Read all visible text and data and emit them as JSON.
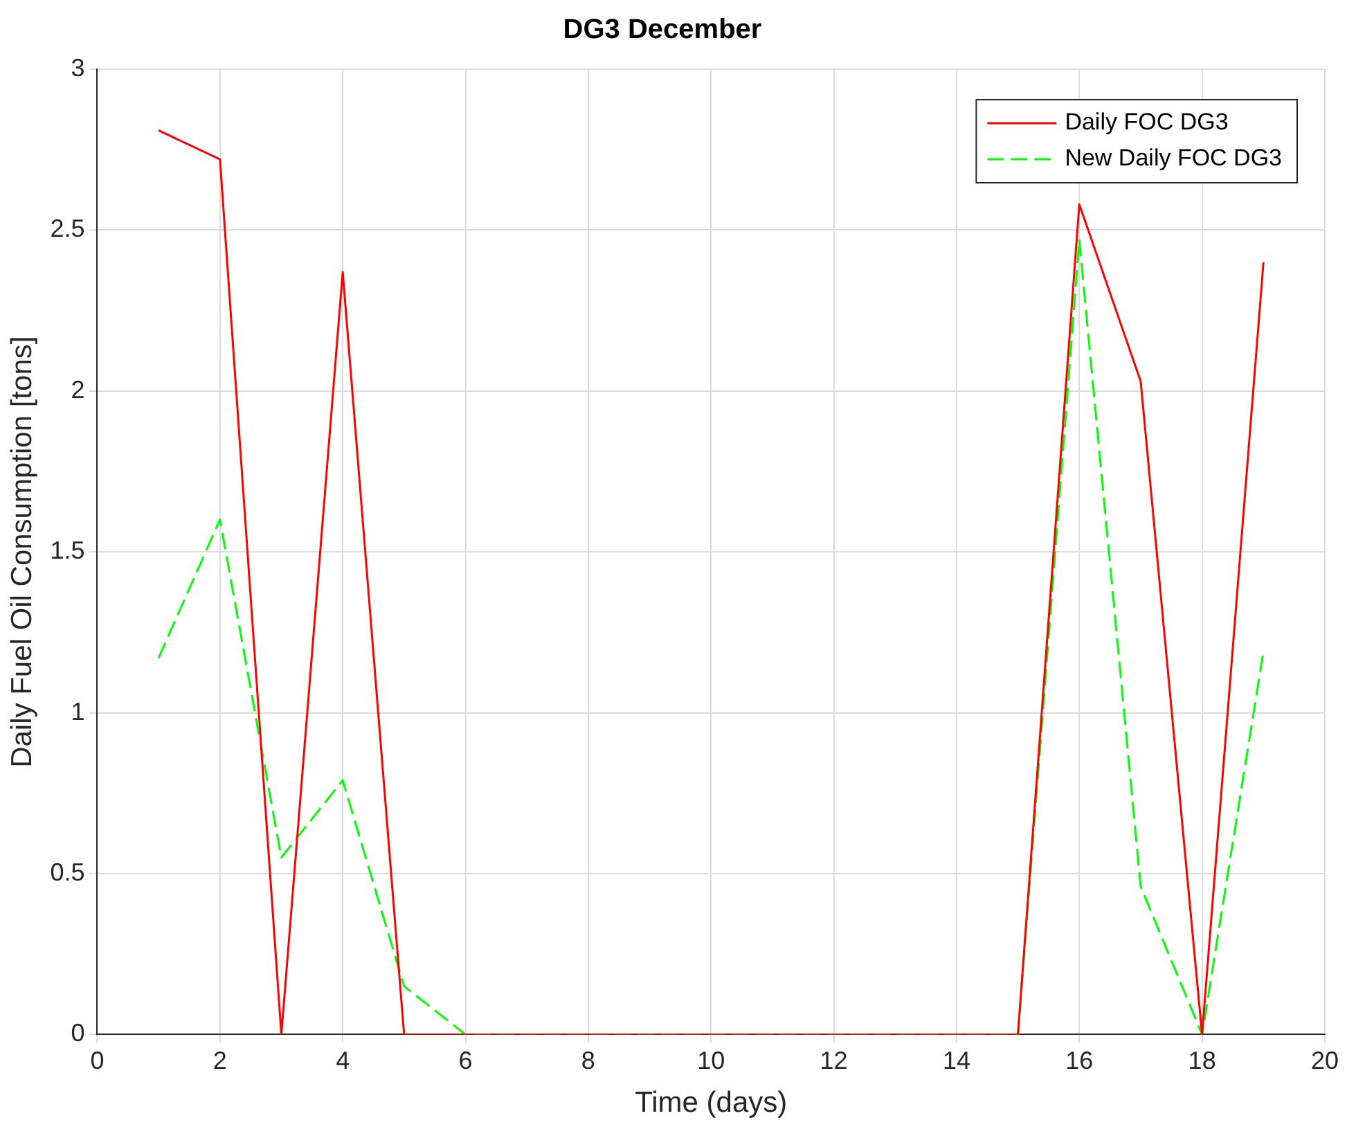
{
  "chart_data": {
    "type": "line",
    "title": "DG3 December",
    "xlabel": "Time (days)",
    "ylabel": "Daily Fuel Oil Consumption [tons]",
    "x": [
      1,
      2,
      3,
      4,
      5,
      6,
      7,
      8,
      9,
      10,
      11,
      12,
      13,
      14,
      15,
      16,
      17,
      18,
      19
    ],
    "series": [
      {
        "name": "Daily FOC DG3",
        "color": "#ff0000",
        "line_style": "solid",
        "values": [
          2.81,
          2.72,
          0,
          2.37,
          0,
          0,
          0,
          0,
          0,
          0,
          0,
          0,
          0,
          0,
          0,
          2.58,
          2.03,
          0,
          2.4
        ]
      },
      {
        "name": "New Daily FOC DG3",
        "color": "#00ff00",
        "line_style": "dashed",
        "values": [
          1.17,
          1.6,
          0.55,
          0.79,
          0.15,
          0,
          0,
          0,
          0,
          0,
          0,
          0,
          0,
          0,
          0,
          2.47,
          0.46,
          0,
          1.19
        ]
      }
    ],
    "xlim": [
      0,
      20
    ],
    "xticks": [
      0,
      2,
      4,
      6,
      8,
      10,
      12,
      14,
      16,
      18,
      20
    ],
    "ylim": [
      0,
      3
    ],
    "yticks": [
      0,
      0.5,
      1,
      1.5,
      2,
      2.5,
      3
    ],
    "grid": true,
    "legend": "top right",
    "marker": "none"
  }
}
